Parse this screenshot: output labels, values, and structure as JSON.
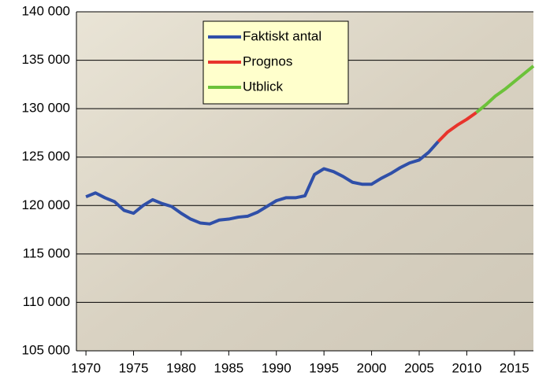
{
  "chart_data": {
    "type": "line",
    "xlim": [
      1969,
      2017
    ],
    "xticks": [
      1970,
      1975,
      1980,
      1985,
      1990,
      1995,
      2000,
      2005,
      2010,
      2015
    ],
    "ylim": [
      105000,
      140000
    ],
    "yticks": [
      {
        "value": 105000,
        "label": "105 000"
      },
      {
        "value": 110000,
        "label": "110 000"
      },
      {
        "value": 115000,
        "label": "115 000"
      },
      {
        "value": 120000,
        "label": "120 000"
      },
      {
        "value": 125000,
        "label": "125 000"
      },
      {
        "value": 130000,
        "label": "130 000"
      },
      {
        "value": 135000,
        "label": "135 000"
      },
      {
        "value": 140000,
        "label": "140 000"
      }
    ],
    "grid": true,
    "legend": "top-center",
    "series": [
      {
        "name": "Faktiskt antal",
        "color": "#2f4fa8",
        "x": [
          1970,
          1971,
          1972,
          1973,
          1974,
          1975,
          1976,
          1977,
          1978,
          1979,
          1980,
          1981,
          1982,
          1983,
          1984,
          1985,
          1986,
          1987,
          1988,
          1989,
          1990,
          1991,
          1992,
          1993,
          1994,
          1995,
          1996,
          1997,
          1998,
          1999,
          2000,
          2001,
          2002,
          2003,
          2004,
          2005,
          2006,
          2007
        ],
        "values": [
          120900,
          121300,
          120800,
          120400,
          119500,
          119200,
          120000,
          120600,
          120200,
          119900,
          119200,
          118600,
          118200,
          118100,
          118500,
          118600,
          118800,
          118900,
          119300,
          119900,
          120500,
          120800,
          120800,
          121000,
          123200,
          123800,
          123500,
          123000,
          122400,
          122200,
          122200,
          122800,
          123300,
          123900,
          124400,
          124700,
          125500,
          126600
        ]
      },
      {
        "name": "Prognos",
        "color": "#e8342c",
        "x": [
          2007,
          2008,
          2009,
          2010,
          2011
        ],
        "values": [
          126600,
          127600,
          128300,
          128900,
          129600
        ]
      },
      {
        "name": "Utblick",
        "color": "#6cc23a",
        "x": [
          2011,
          2012,
          2013,
          2014,
          2015,
          2016,
          2017
        ],
        "values": [
          129600,
          130400,
          131300,
          132000,
          132800,
          133600,
          134400
        ]
      }
    ]
  }
}
